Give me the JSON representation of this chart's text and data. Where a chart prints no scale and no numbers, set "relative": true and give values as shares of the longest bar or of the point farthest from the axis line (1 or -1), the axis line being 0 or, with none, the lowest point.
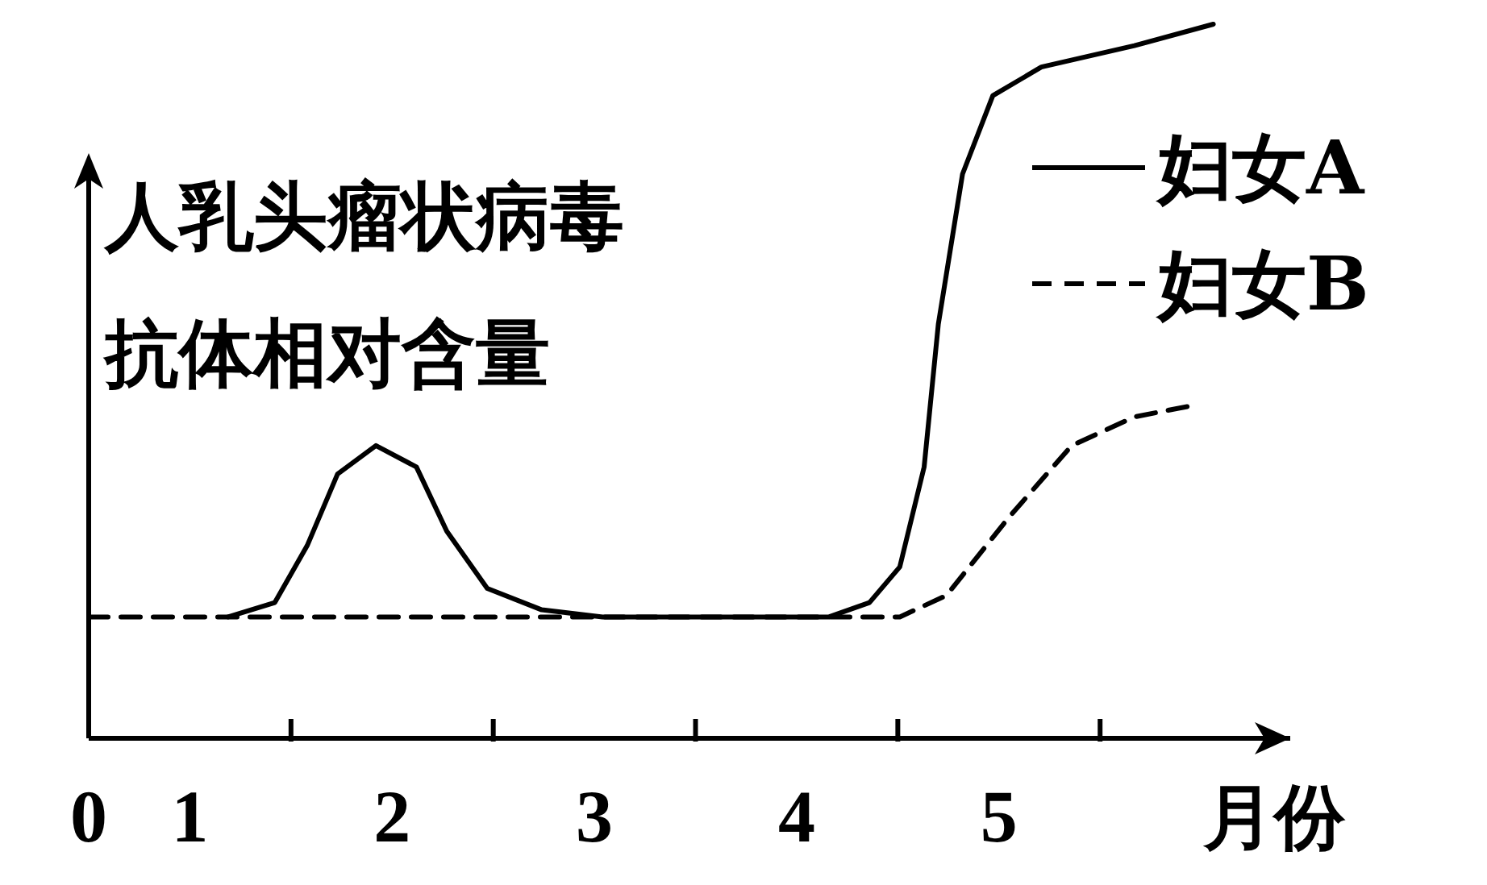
{
  "chart_data": {
    "type": "line",
    "ylabel": "人乳头瘤状病毒抗体相对含量",
    "xlabel": "月份",
    "relative": true,
    "legend": "top right",
    "xlim": [
      0,
      5.94
    ],
    "xticks": [
      {
        "value": 0,
        "label": "0"
      },
      {
        "value": 0.5,
        "label": "1"
      },
      {
        "value": 1,
        "label": null
      },
      {
        "value": 1.5,
        "label": "2"
      },
      {
        "value": 2,
        "label": null
      },
      {
        "value": 2.5,
        "label": "3"
      },
      {
        "value": 3,
        "label": null
      },
      {
        "value": 3.5,
        "label": "4"
      },
      {
        "value": 4,
        "label": null
      },
      {
        "value": 4.5,
        "label": "5"
      },
      {
        "value": 5,
        "label": null
      }
    ],
    "series": [
      {
        "name": "妇女A",
        "color": "#000000",
        "line_style": "solid",
        "x": [
          0.69,
          0.92,
          1.08,
          1.23,
          1.42,
          1.62,
          1.77,
          1.97,
          2.24,
          2.54,
          3.66,
          3.86,
          4.01,
          4.13,
          4.2,
          4.32,
          4.47,
          4.71,
          5.17,
          5.56
        ],
        "values": [
          0.17,
          0.19,
          0.27,
          0.37,
          0.41,
          0.38,
          0.29,
          0.21,
          0.18,
          0.17,
          0.17,
          0.19,
          0.24,
          0.38,
          0.58,
          0.79,
          0.9,
          0.94,
          0.97,
          1.0
        ]
      },
      {
        "name": "妇女B",
        "color": "#000000",
        "line_style": "dashed",
        "x": [
          0,
          4.01,
          4.24,
          4.55,
          4.86,
          5.17,
          5.44
        ],
        "values": [
          0.17,
          0.17,
          0.2,
          0.31,
          0.41,
          0.45,
          0.465
        ]
      }
    ]
  }
}
